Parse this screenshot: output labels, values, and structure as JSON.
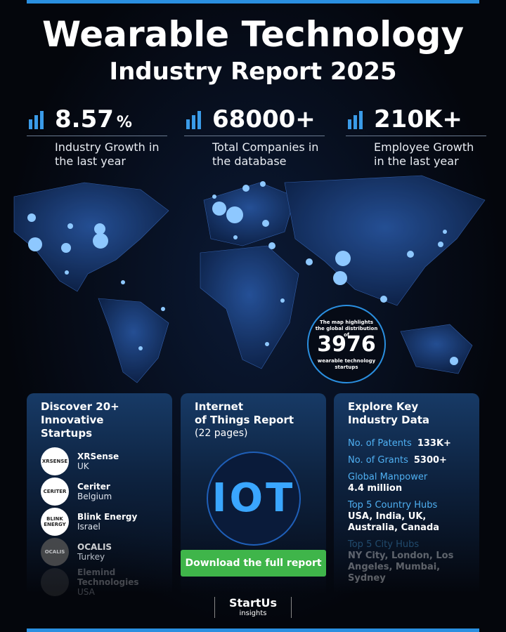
{
  "title": "Wearable Technology",
  "subtitle": "Industry Report 2025",
  "stats": [
    {
      "value": "8.57",
      "unit": "%",
      "label": "Industry Growth in the last year"
    },
    {
      "value": "68000+",
      "label": "Total Companies in the database"
    },
    {
      "value": "210K+",
      "label": "Employee Growth in the last year"
    }
  ],
  "map_note": {
    "top": "The map highlights the global distribution of",
    "number": "3976",
    "bottom": "wearable technology startups"
  },
  "startups": {
    "heading": [
      "Discover 20+",
      "Innovative Startups"
    ],
    "items": [
      {
        "logo": "XRSENSE",
        "name": "XRSense",
        "country": "UK"
      },
      {
        "logo": "CERITER",
        "name": "Ceriter",
        "country": "Belgium"
      },
      {
        "logo": "BLINK ENERGY",
        "name": "Blink Energy",
        "country": "Israel"
      },
      {
        "logo": "OCALIS",
        "name": "OCALIS",
        "country": "Turkey"
      },
      {
        "logo": "",
        "name": "Elemind Technologies",
        "country": "USA"
      }
    ]
  },
  "report": {
    "heading": [
      "Internet",
      "of Things Report"
    ],
    "pages": "(22 pages)",
    "image_text": "IOT",
    "button": "Download the full report"
  },
  "industry_data": {
    "heading": [
      "Explore Key",
      "Industry Data"
    ],
    "items": [
      {
        "label": "No. of Patents",
        "value": "133K+",
        "inline": true
      },
      {
        "label": "No. of Grants",
        "value": "5300+",
        "inline": true
      },
      {
        "label": "Global Manpower",
        "value": "4.4 million"
      },
      {
        "label": "Top 5 Country Hubs",
        "value": "USA, India, UK, Australia, Canada"
      },
      {
        "label": "Top 5 City Hubs",
        "value": "NY City, London, Los Angeles, Mumbai, Sydney"
      }
    ]
  },
  "footer": {
    "brand": "StartUs",
    "sub": "insights"
  }
}
